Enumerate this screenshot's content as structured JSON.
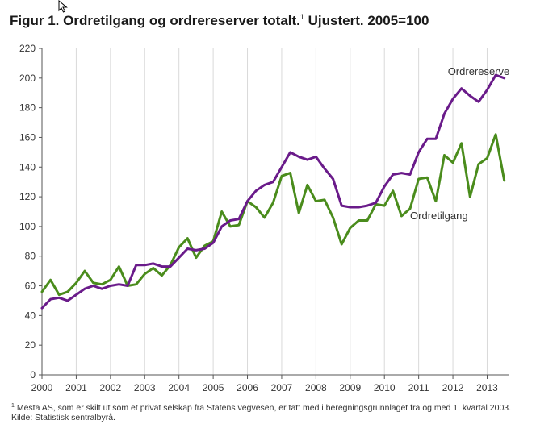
{
  "page": {
    "title_main": "Figur 1. Ordretilgang og ordrereserver totalt.",
    "title_note": "1",
    "title_rest": " Ujustert. 2005=100"
  },
  "chart_data": {
    "type": "line",
    "title": "Figur 1. Ordretilgang og ordrereserver totalt. Ujustert. 2005=100",
    "xlabel": "",
    "ylabel": "",
    "ylim": [
      0,
      220
    ],
    "yticks": [
      "0",
      "20",
      "40",
      "60",
      "80",
      "100",
      "120",
      "140",
      "160",
      "180",
      "200",
      "220"
    ],
    "xticks": [
      "2000",
      "2001",
      "2002",
      "2003",
      "2004",
      "2005",
      "2006",
      "2007",
      "2008",
      "2009",
      "2010",
      "2011",
      "2012",
      "2013"
    ],
    "x_start": 2000,
    "x_step": 0.25,
    "grid": "vertical",
    "series": [
      {
        "name": "Ordrereserve",
        "color": "#6a1b8a",
        "values": [
          45,
          51,
          52,
          50,
          54,
          58,
          60,
          58,
          60,
          61,
          60,
          74,
          74,
          75,
          73,
          73,
          79,
          85,
          84,
          85,
          89,
          100,
          104,
          105,
          117,
          124,
          128,
          130,
          140,
          150,
          147,
          145,
          147,
          139,
          132,
          114,
          113,
          113,
          114,
          116,
          127,
          135,
          136,
          135,
          150,
          159,
          159,
          176,
          186,
          193,
          188,
          184,
          192,
          202,
          200
        ]
      },
      {
        "name": "Ordretilgang",
        "color": "#4a8c1c",
        "values": [
          56,
          64,
          54,
          56,
          62,
          70,
          62,
          61,
          64,
          73,
          60,
          61,
          68,
          72,
          67,
          74,
          86,
          92,
          79,
          87,
          90,
          110,
          100,
          101,
          117,
          113,
          106,
          116,
          134,
          136,
          109,
          128,
          117,
          118,
          106,
          88,
          99,
          104,
          104,
          115,
          114,
          124,
          107,
          112,
          132,
          133,
          117,
          148,
          143,
          156,
          120,
          142,
          146,
          162,
          131
        ]
      }
    ]
  },
  "footnotes": {
    "note_marker": "1",
    "note_text": " Mesta AS, som er skilt ut som et privat selskap fra Statens vegvesen, er tatt med i beregningsgrunnlaget fra og med 1. kvartal 2003.",
    "source": "Kilde: Statistisk sentralbyrå."
  }
}
